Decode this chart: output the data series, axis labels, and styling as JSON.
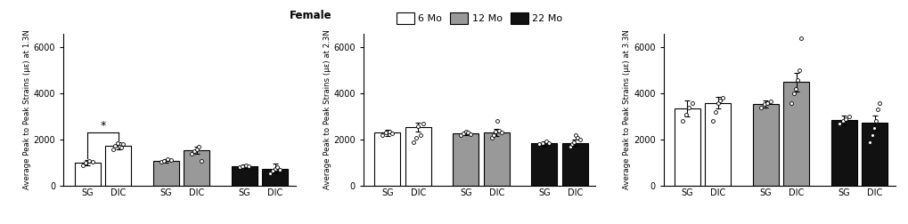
{
  "panels": [
    {
      "ylabel": "Average Peak to Peak Strains (με) at 1.3N",
      "ylim": [
        0,
        6600
      ],
      "yticks": [
        0,
        2000,
        4000,
        6000
      ],
      "bar_heights": [
        1000,
        1750,
        1100,
        1550,
        850,
        750
      ],
      "bar_errors": [
        120,
        150,
        80,
        170,
        80,
        200
      ],
      "bar_colors": [
        "white",
        "white",
        "#999999",
        "#999999",
        "#111111",
        "#111111"
      ],
      "scatter_points": [
        [
          900,
          1000,
          1100,
          1050
        ],
        [
          1600,
          1750,
          1850,
          1700,
          1650,
          1800
        ],
        [
          1050,
          1100,
          1150,
          1120
        ],
        [
          1400,
          1500,
          1600,
          1700,
          1100
        ],
        [
          800,
          850,
          900,
          870
        ],
        [
          550,
          650,
          750,
          800,
          700
        ]
      ],
      "has_significance": true,
      "xticklabels": [
        "SG",
        "DIC",
        "SG",
        "DIC",
        "SG",
        "DIC"
      ]
    },
    {
      "ylabel": "Average Peak to Peak Strains (με) at 2.3N",
      "ylim": [
        0,
        6600
      ],
      "yticks": [
        0,
        2000,
        4000,
        6000
      ],
      "bar_heights": [
        2300,
        2550,
        2280,
        2320,
        1850,
        1870
      ],
      "bar_errors": [
        120,
        200,
        80,
        170,
        100,
        130
      ],
      "bar_colors": [
        "white",
        "white",
        "#999999",
        "#999999",
        "#111111",
        "#111111"
      ],
      "scatter_points": [
        [
          2200,
          2300,
          2350,
          2280
        ],
        [
          1900,
          2100,
          2600,
          2200,
          2700
        ],
        [
          2200,
          2280,
          2350,
          2300,
          2250
        ],
        [
          2100,
          2200,
          2350,
          2800,
          2400,
          2300
        ],
        [
          1800,
          1850,
          1950,
          1870
        ],
        [
          1700,
          1800,
          1900,
          2200,
          2100,
          2000
        ]
      ],
      "has_significance": false,
      "xticklabels": [
        "SG",
        "DIC",
        "SG",
        "DIC",
        "SG",
        "DIC"
      ]
    },
    {
      "ylabel": "Average Peak to Peak Strains (με) at 3.3N",
      "ylim": [
        0,
        6600
      ],
      "yticks": [
        0,
        2000,
        4000,
        6000
      ],
      "bar_heights": [
        3350,
        3600,
        3550,
        4500,
        2850,
        2750
      ],
      "bar_errors": [
        350,
        250,
        150,
        400,
        200,
        300
      ],
      "bar_colors": [
        "white",
        "white",
        "#999999",
        "#999999",
        "#111111",
        "#111111"
      ],
      "scatter_points": [
        [
          2800,
          3100,
          3400,
          3600
        ],
        [
          2800,
          3200,
          3600,
          3700,
          3800
        ],
        [
          3400,
          3550,
          3600,
          3650
        ],
        [
          3600,
          4000,
          4200,
          4600,
          5000,
          6400
        ],
        [
          2700,
          2800,
          2900,
          3000
        ],
        [
          1900,
          2200,
          2500,
          2800,
          3300,
          3600
        ]
      ],
      "has_significance": false,
      "xticklabels": [
        "SG",
        "DIC",
        "SG",
        "DIC",
        "SG",
        "DIC"
      ]
    }
  ],
  "legend_labels": [
    "6 Mo",
    "12 Mo",
    "22 Mo"
  ],
  "legend_colors": [
    "white",
    "#999999",
    "#111111"
  ],
  "legend_title": "Female",
  "figure_width": 10.2,
  "figure_height": 2.52,
  "dpi": 100
}
